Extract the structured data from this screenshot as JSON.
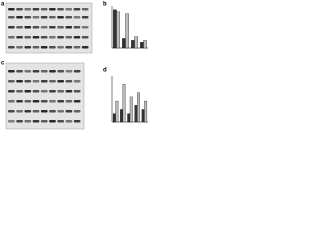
{
  "panels": {
    "a": "a",
    "b": "b",
    "c": "c",
    "d": "d"
  },
  "chart_b": {
    "type": "bar",
    "categories": [
      null,
      null,
      null,
      null
    ],
    "series": [
      {
        "color": "#333333",
        "values": [
          1.0,
          0.25,
          0.2,
          0.15
        ]
      },
      {
        "color": "#bbbbbb",
        "values": [
          0.95,
          0.9,
          0.3,
          0.2
        ]
      }
    ],
    "ylim": [
      0,
      1.1
    ]
  },
  "chart_d": {
    "type": "bar",
    "categories": [
      null,
      null,
      null,
      null,
      null
    ],
    "series": [
      {
        "color": "#333333",
        "values": [
          0.2,
          0.3,
          0.2,
          0.4,
          0.3
        ]
      },
      {
        "color": "#bbbbbb",
        "values": [
          0.5,
          0.9,
          0.6,
          0.7,
          0.5
        ]
      }
    ],
    "ylim": [
      0,
      1.1
    ]
  }
}
